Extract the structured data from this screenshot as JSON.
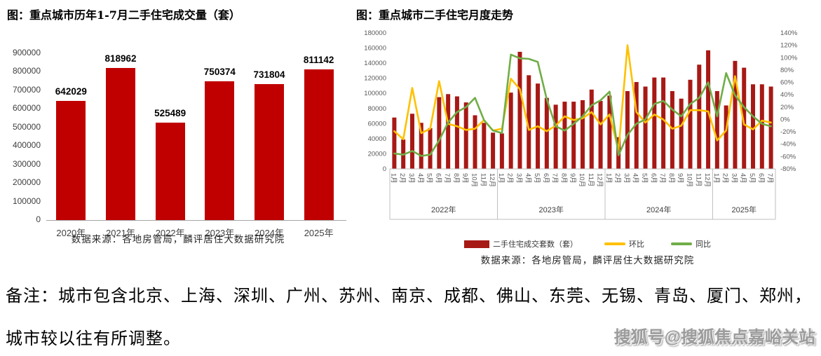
{
  "note": {
    "line1": "备注：城市包含北京、上海、深圳、广州、苏州、南京、成都、佛山、东莞、无锡、青岛、厦门、郑州，",
    "line2": "城市较以往有所调整。"
  },
  "watermark": {
    "text": "搜狐号@搜狐焦点嘉峪关站"
  },
  "colors": {
    "left_bar": "#c00000",
    "right_bar": "#a71915",
    "huanbi_line": "#ffc000",
    "tongbi_line": "#70ad47",
    "axis_text": "#595959"
  },
  "chart_data": [
    {
      "type": "bar",
      "title": "图：重点城市历年1-7月二手住宅成交量（套）",
      "source": "数据来源：各地房管局，麟评居住大数据研究院",
      "categories": [
        "2020年",
        "2021年",
        "2022年",
        "2023年",
        "2024年",
        "2025年"
      ],
      "values": [
        642029,
        818962,
        525489,
        750374,
        731804,
        811142
      ],
      "bar_color": "#c00000",
      "ylim": [
        0,
        900000
      ],
      "ytick_step": 100000,
      "grid": false,
      "value_labels": true,
      "legend_position": "none"
    },
    {
      "type": "bar+line",
      "title": "图：重点城市二手住宅月度走势",
      "source": "数据来源：各地房管局，麟评居住大数据研究院",
      "left_axis": {
        "min": 0,
        "max": 180000,
        "step": 20000
      },
      "right_axis": {
        "min": -80,
        "max": 140,
        "step": 20,
        "suffix": "%"
      },
      "legend_position": "bottom",
      "grid": false,
      "groups": [
        {
          "year": "2022年",
          "months": [
            "1月",
            "2月",
            "3月",
            "4月",
            "5月",
            "6月",
            "7月",
            "8月",
            "9月",
            "10月",
            "11月",
            "12月"
          ]
        },
        {
          "year": "2023年",
          "months": [
            "1月",
            "2月",
            "3月",
            "4月",
            "5月",
            "6月",
            "7月",
            "8月",
            "9月",
            "10月",
            "11月",
            "12月"
          ]
        },
        {
          "year": "2024年",
          "months": [
            "1月",
            "2月",
            "3月",
            "4月",
            "5月",
            "6月",
            "7月",
            "8月",
            "9月",
            "10月",
            "11月",
            "12月"
          ]
        },
        {
          "year": "2025年",
          "months": [
            "1月",
            "2月",
            "3月",
            "4月",
            "5月",
            "6月",
            "7月"
          ]
        }
      ],
      "series": [
        {
          "name": "二手住宅成交套数（套）",
          "type": "bar",
          "axis": "left",
          "color": "#a71915",
          "values": [
            68000,
            39000,
            73000,
            61000,
            54000,
            95000,
            99000,
            96000,
            88000,
            71000,
            61000,
            48000,
            47000,
            101000,
            155000,
            124000,
            113000,
            94000,
            85000,
            89000,
            89000,
            91000,
            105000,
            90000,
            97000,
            42000,
            103000,
            115000,
            109000,
            121000,
            121000,
            103000,
            93000,
            118000,
            138000,
            157000,
            103000,
            84000,
            143000,
            134000,
            112000,
            112000,
            109000
          ]
        },
        {
          "name": "环比",
          "type": "line",
          "axis": "right",
          "color": "#ffc000",
          "values": [
            -19,
            -32,
            51,
            -22,
            -15,
            62,
            -7,
            -11,
            -17,
            -15,
            -1,
            -18,
            -15,
            66,
            49,
            -17,
            -11,
            -19,
            -10,
            5,
            -1,
            2,
            12,
            -8,
            8,
            -50,
            120,
            12,
            -5,
            8,
            0,
            -15,
            -10,
            15,
            15,
            13,
            -34,
            -18,
            70,
            -8,
            -16,
            -2,
            -5
          ]
        },
        {
          "name": "同比",
          "type": "line",
          "axis": "right",
          "color": "#70ad47",
          "values": [
            -55,
            -57,
            -51,
            -59,
            -57,
            -34,
            -5,
            12,
            20,
            35,
            -1,
            -18,
            -22,
            105,
            99,
            98,
            93,
            33,
            -11,
            -18,
            -7,
            5,
            23,
            31,
            45,
            -58,
            -25,
            -7,
            0,
            25,
            30,
            16,
            5,
            25,
            35,
            60,
            5,
            75,
            39,
            20,
            5,
            -7,
            -11
          ]
        }
      ]
    }
  ]
}
